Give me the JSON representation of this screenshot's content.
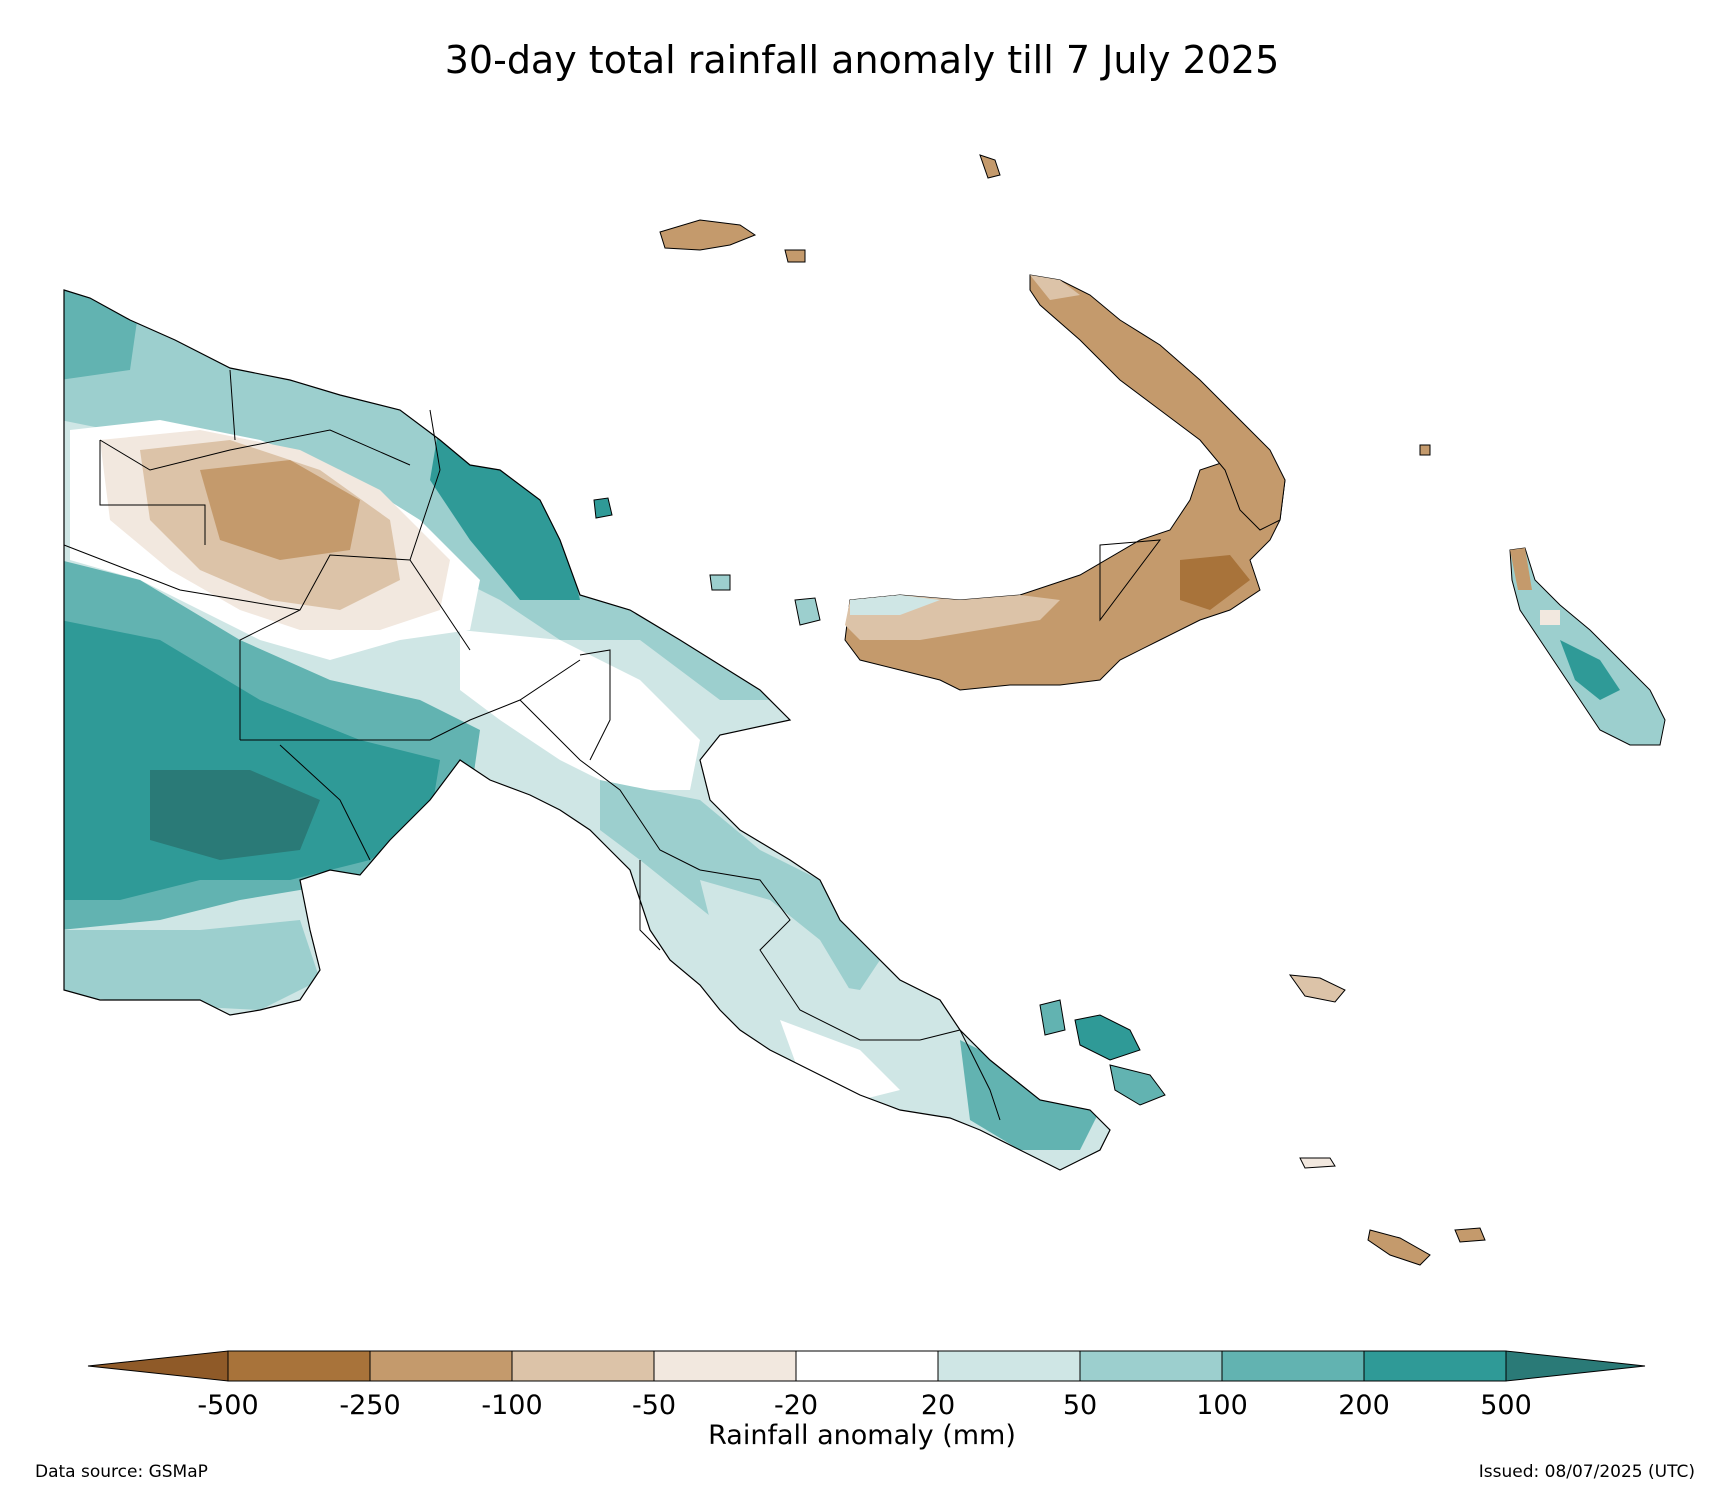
{
  "title": "30-day total rainfall anomaly till 7 July 2025",
  "colorbar": {
    "label": "Rainfall anomaly (mm)",
    "ticks": [
      "-500",
      "-250",
      "-100",
      "-50",
      "-20",
      "20",
      "50",
      "100",
      "200",
      "500"
    ],
    "colors": [
      "#a8733a",
      "#c49a6c",
      "#dcc3a8",
      "#f2e8df",
      "#ffffff",
      "#cfe6e5",
      "#9ccfce",
      "#62b3b1",
      "#2f9a97"
    ],
    "under_color": "#8f5a28",
    "over_color": "#2a7a77"
  },
  "footer": {
    "source": "Data source: GSMaP",
    "issued": "Issued: 08/07/2025 (UTC)"
  },
  "colors": {
    "strong_dry": "#a8733a",
    "dry": "#c49a6c",
    "mild_dry": "#dcc3a8",
    "slight_dry": "#f2e8df",
    "near_normal": "#ffffff",
    "slight_wet": "#cfe6e5",
    "mild_wet": "#9ccfce",
    "wet": "#62b3b1",
    "very_wet": "#2f9a97",
    "extreme_wet": "#2a7a77"
  }
}
